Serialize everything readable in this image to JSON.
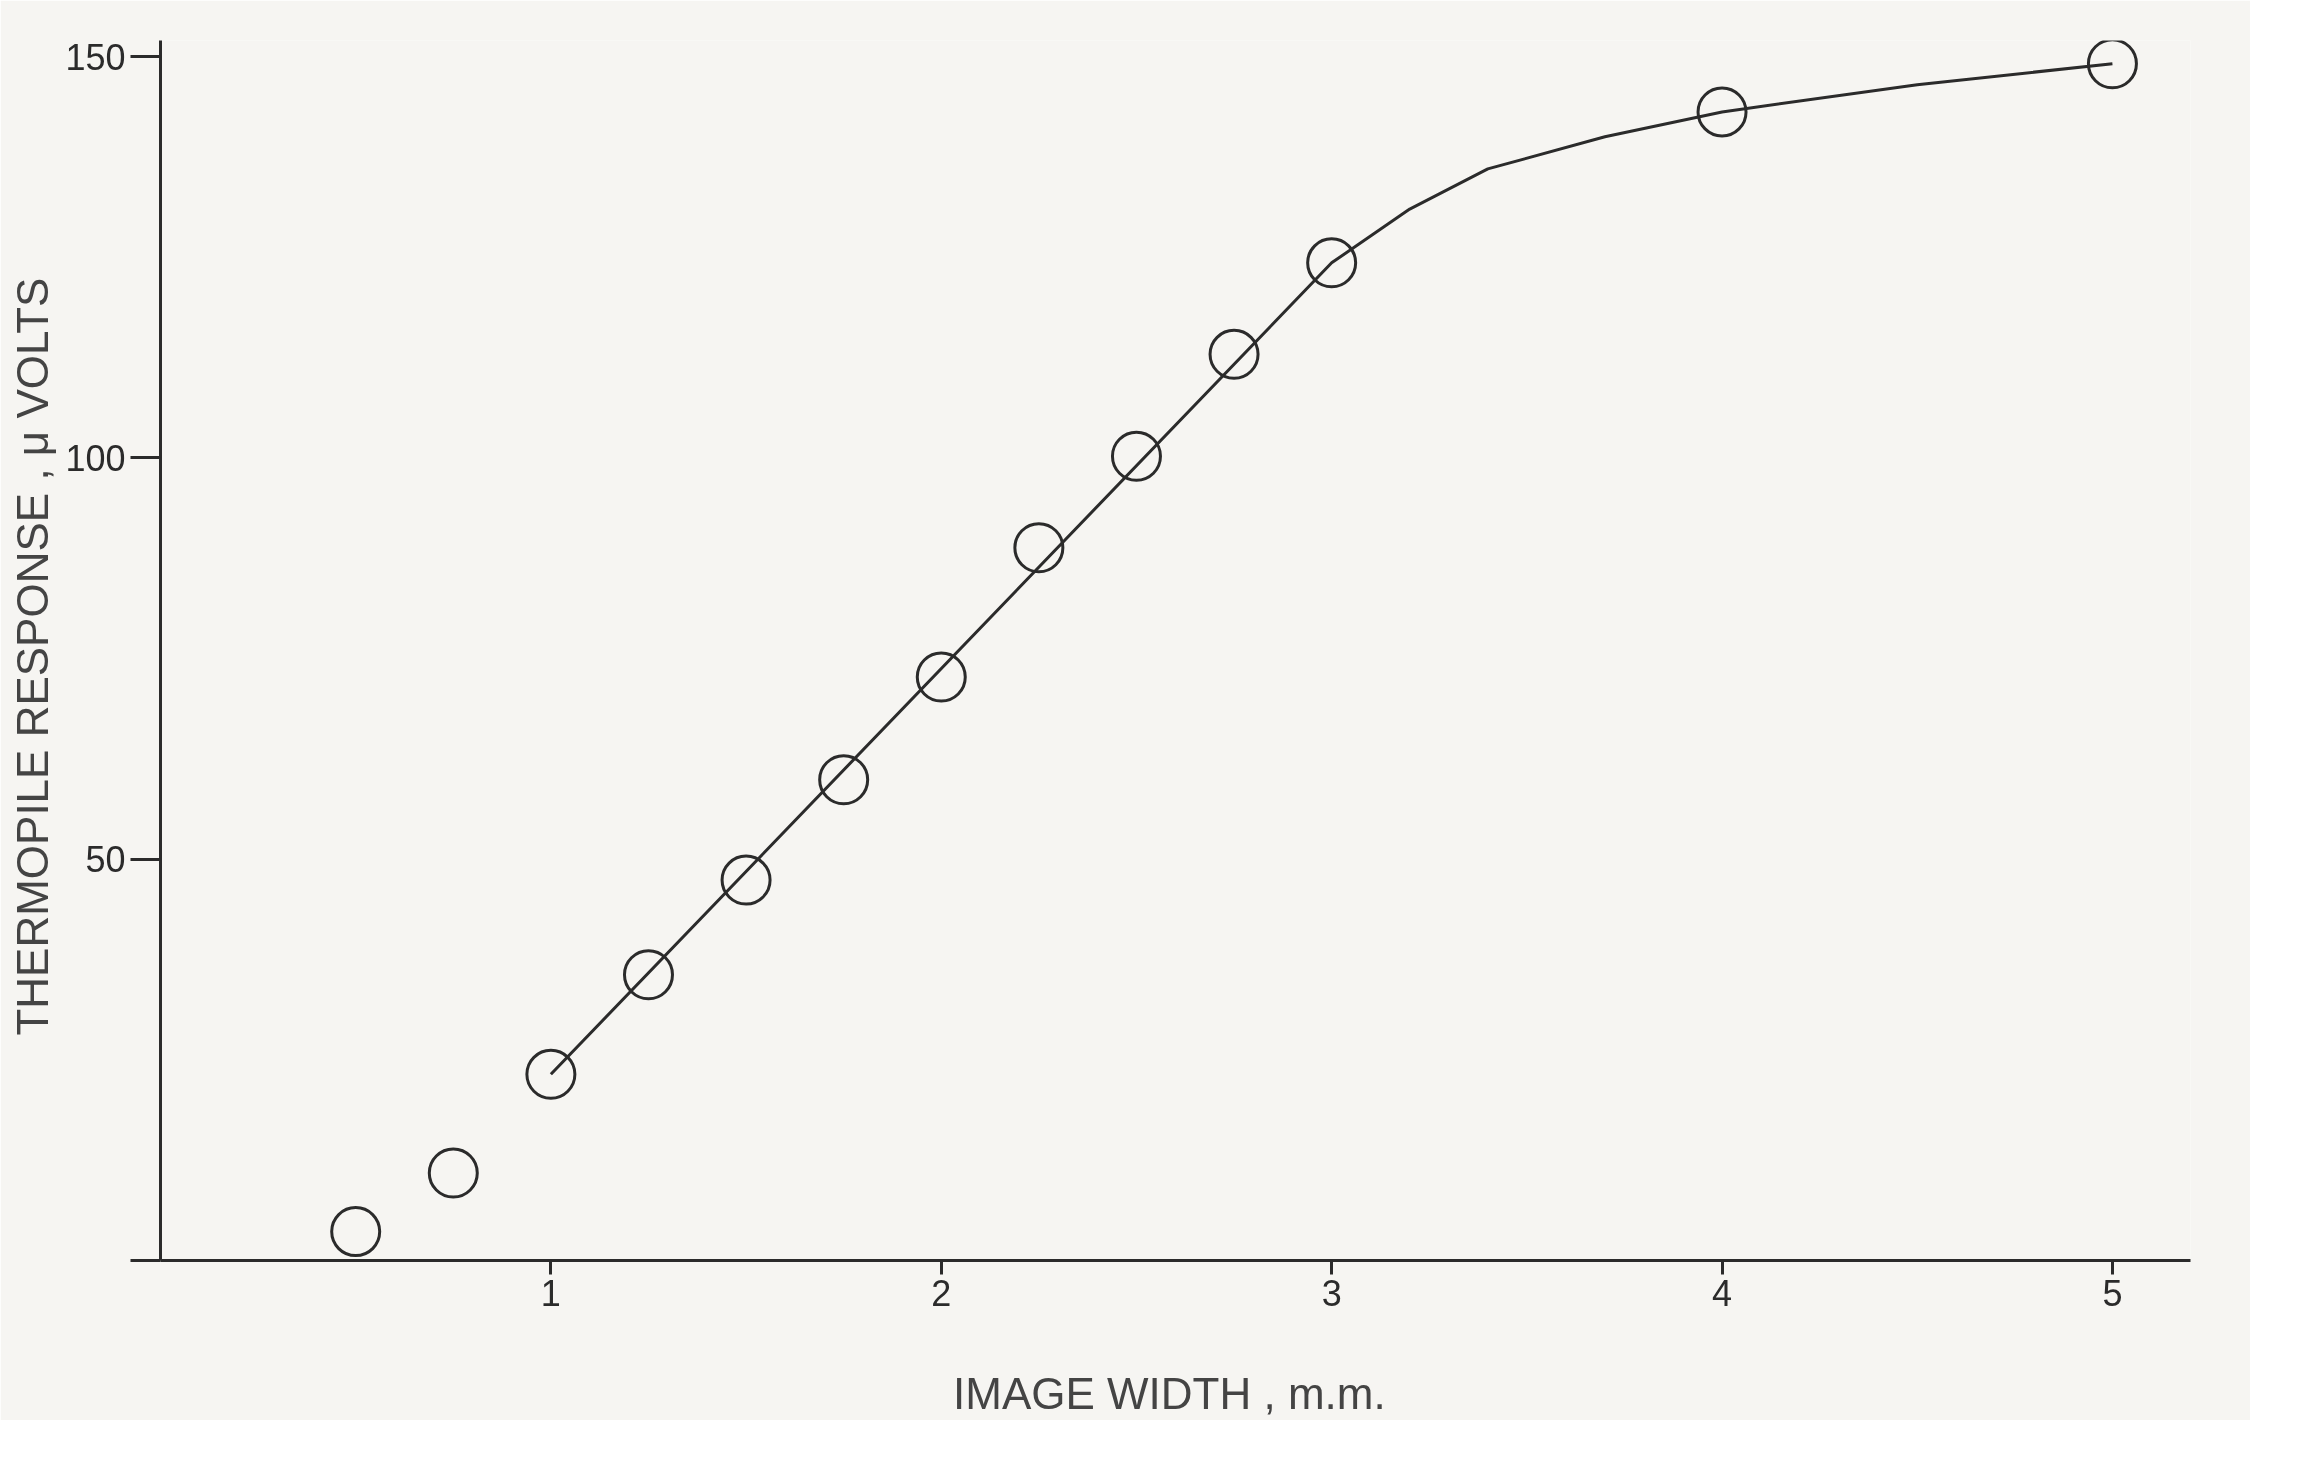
{
  "chart_data": {
    "type": "scatter",
    "xlabel": "IMAGE  WIDTH , m.m.",
    "ylabel": "THERMOPILE  RESPONSE , μ VOLTS",
    "xlim": [
      0,
      5.2
    ],
    "ylim": [
      0,
      152
    ],
    "xticks": [
      1,
      2,
      3,
      4,
      5
    ],
    "yticks": [
      {
        "value": 0,
        "label": null
      },
      50,
      100,
      150
    ],
    "grid": false,
    "marker": "circle",
    "series": [
      {
        "color": "#2b2b2b",
        "x": [
          0.5,
          0.75,
          1,
          1.25,
          1.5,
          1.75,
          2,
          2.25,
          2.5,
          2.75,
          3,
          4,
          5
        ],
        "values": [
          3.6,
          10.9,
          23.2,
          35.6,
          47.4,
          59.9,
          72.7,
          88.8,
          100.2,
          112.9,
          124.3,
          143.1,
          149.1
        ]
      },
      {
        "type": "line",
        "color": "#2b2b2b",
        "line_style": "solid",
        "marker": "none",
        "x": [
          1,
          3,
          3.2,
          3.4,
          3.7,
          4,
          4.5,
          5
        ],
        "values": [
          23.2,
          124.3,
          131,
          136,
          140,
          143.1,
          146.5,
          149.1
        ]
      }
    ]
  }
}
